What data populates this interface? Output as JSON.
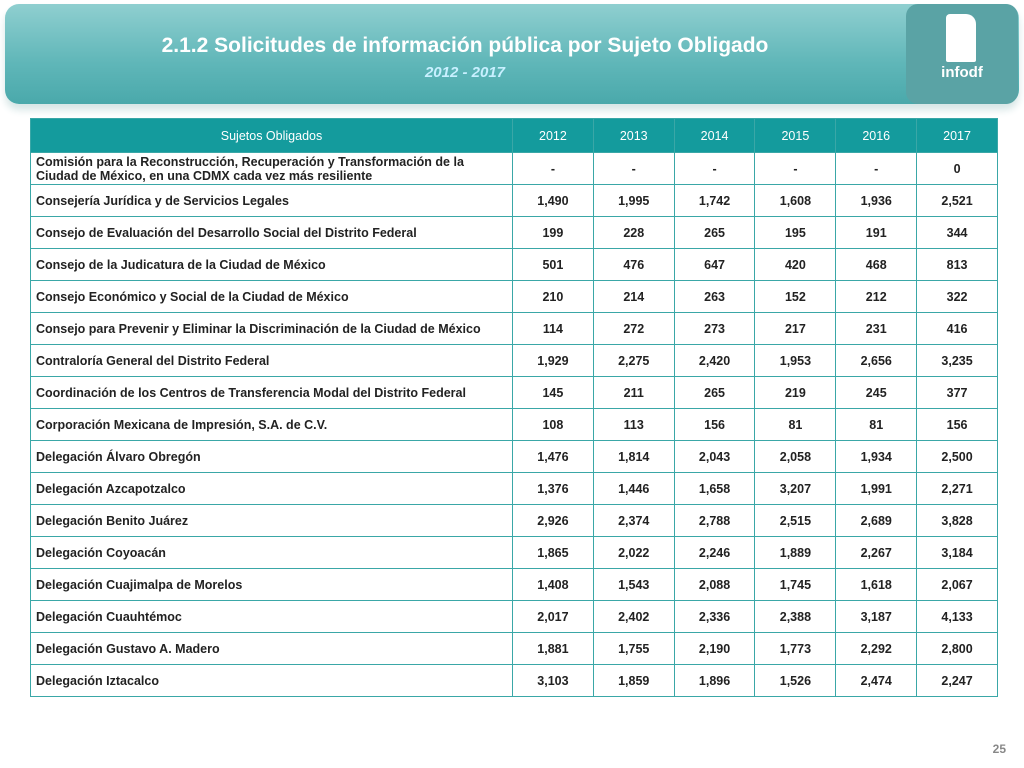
{
  "header": {
    "title": "2.1.2 Solicitudes de información pública por Sujeto Obligado",
    "subtitle": "2012 - 2017",
    "logo": "infodf"
  },
  "table": {
    "columns": [
      "Sujetos Obligados",
      "2012",
      "2013",
      "2014",
      "2015",
      "2016",
      "2017"
    ],
    "rows": [
      [
        "Comisión para la Reconstrucción, Recuperación y Transformación de la Ciudad de México, en una CDMX cada vez más resiliente",
        "-",
        "-",
        "-",
        "-",
        "-",
        "0"
      ],
      [
        "Consejería Jurídica y de Servicios Legales",
        "1,490",
        "1,995",
        "1,742",
        "1,608",
        "1,936",
        "2,521"
      ],
      [
        "Consejo de Evaluación del Desarrollo Social del Distrito Federal",
        "199",
        "228",
        "265",
        "195",
        "191",
        "344"
      ],
      [
        "Consejo de la Judicatura de la Ciudad de México",
        "501",
        "476",
        "647",
        "420",
        "468",
        "813"
      ],
      [
        "Consejo Económico y Social de la Ciudad de México",
        "210",
        "214",
        "263",
        "152",
        "212",
        "322"
      ],
      [
        "Consejo para Prevenir y Eliminar la Discriminación de la Ciudad de México",
        "114",
        "272",
        "273",
        "217",
        "231",
        "416"
      ],
      [
        "Contraloría General del Distrito Federal",
        "1,929",
        "2,275",
        "2,420",
        "1,953",
        "2,656",
        "3,235"
      ],
      [
        "Coordinación de los Centros de Transferencia Modal del Distrito Federal",
        "145",
        "211",
        "265",
        "219",
        "245",
        "377"
      ],
      [
        "Corporación Mexicana de Impresión, S.A. de C.V.",
        "108",
        "113",
        "156",
        "81",
        "81",
        "156"
      ],
      [
        "Delegación Álvaro Obregón",
        "1,476",
        "1,814",
        "2,043",
        "2,058",
        "1,934",
        "2,500"
      ],
      [
        "Delegación Azcapotzalco",
        "1,376",
        "1,446",
        "1,658",
        "3,207",
        "1,991",
        "2,271"
      ],
      [
        "Delegación Benito Juárez",
        "2,926",
        "2,374",
        "2,788",
        "2,515",
        "2,689",
        "3,828"
      ],
      [
        "Delegación Coyoacán",
        "1,865",
        "2,022",
        "2,246",
        "1,889",
        "2,267",
        "3,184"
      ],
      [
        "Delegación Cuajimalpa de Morelos",
        "1,408",
        "1,543",
        "2,088",
        "1,745",
        "1,618",
        "2,067"
      ],
      [
        "Delegación Cuauhtémoc",
        "2,017",
        "2,402",
        "2,336",
        "2,388",
        "3,187",
        "4,133"
      ],
      [
        "Delegación Gustavo A. Madero",
        "1,881",
        "1,755",
        "2,190",
        "1,773",
        "2,292",
        "2,800"
      ],
      [
        "Delegación Iztacalco",
        "3,103",
        "1,859",
        "1,896",
        "1,526",
        "2,474",
        "2,247"
      ]
    ]
  },
  "footer": {
    "page": "25"
  }
}
